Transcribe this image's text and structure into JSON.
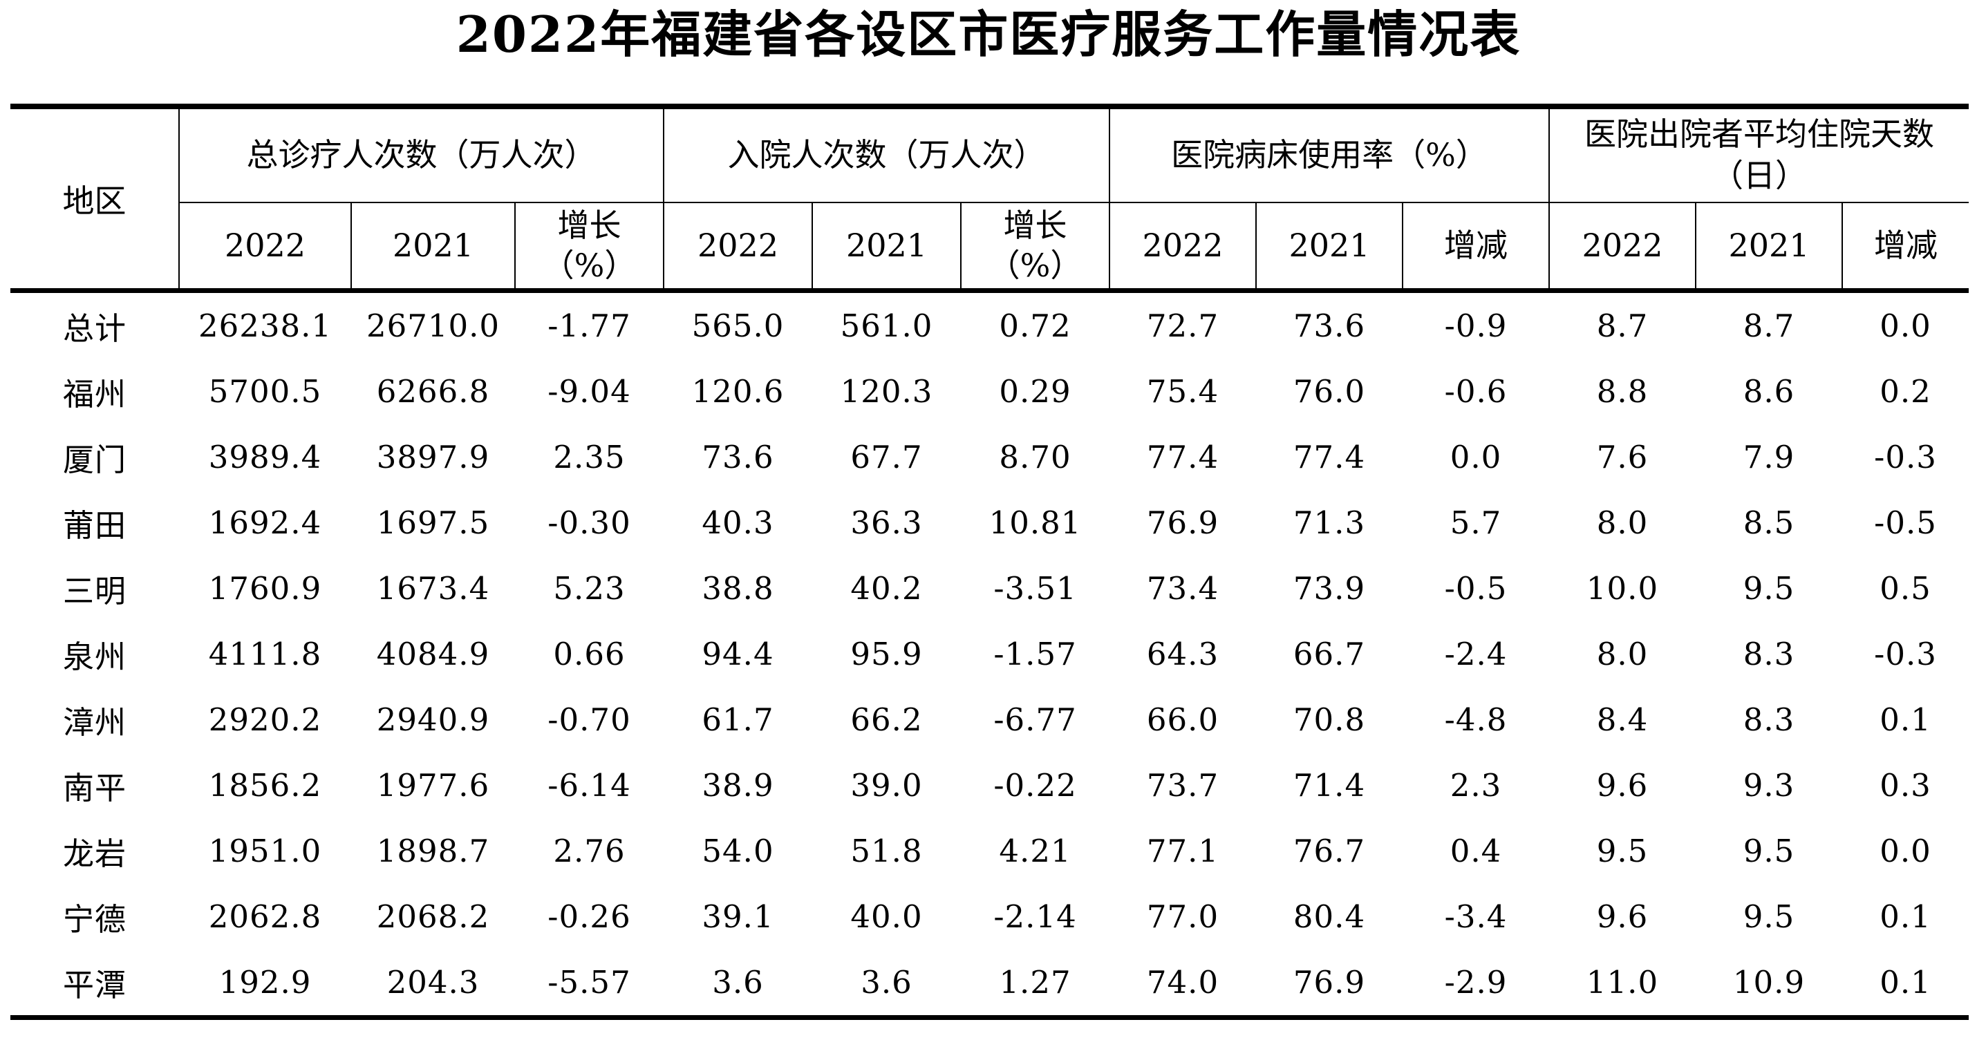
{
  "page": {
    "title": "2022年福建省各设区市医疗服务工作量情况表"
  },
  "colors": {
    "background": "#ffffff",
    "text": "#000000",
    "border": "#000000"
  },
  "table": {
    "region_column_header": "地区",
    "column_groups": [
      {
        "label": "总诊疗人次数（万人次）",
        "subcolumns": [
          "2022",
          "2021",
          "增长\n（%）"
        ]
      },
      {
        "label": "入院人次数（万人次）",
        "subcolumns": [
          "2022",
          "2021",
          "增长\n（%）"
        ]
      },
      {
        "label": "医院病床使用率（%）",
        "subcolumns": [
          "2022",
          "2021",
          "增减"
        ]
      },
      {
        "label": "医院出院者平均住院天数\n（日）",
        "subcolumns": [
          "2022",
          "2021",
          "增减"
        ]
      }
    ],
    "rows": [
      {
        "region": "总计",
        "values": [
          "26238.1",
          "26710.0",
          "-1.77",
          "565.0",
          "561.0",
          "0.72",
          "72.7",
          "73.6",
          "-0.9",
          "8.7",
          "8.7",
          "0.0"
        ]
      },
      {
        "region": "福州",
        "values": [
          "5700.5",
          "6266.8",
          "-9.04",
          "120.6",
          "120.3",
          "0.29",
          "75.4",
          "76.0",
          "-0.6",
          "8.8",
          "8.6",
          "0.2"
        ]
      },
      {
        "region": "厦门",
        "values": [
          "3989.4",
          "3897.9",
          "2.35",
          "73.6",
          "67.7",
          "8.70",
          "77.4",
          "77.4",
          "0.0",
          "7.6",
          "7.9",
          "-0.3"
        ]
      },
      {
        "region": "莆田",
        "values": [
          "1692.4",
          "1697.5",
          "-0.30",
          "40.3",
          "36.3",
          "10.81",
          "76.9",
          "71.3",
          "5.7",
          "8.0",
          "8.5",
          "-0.5"
        ]
      },
      {
        "region": "三明",
        "values": [
          "1760.9",
          "1673.4",
          "5.23",
          "38.8",
          "40.2",
          "-3.51",
          "73.4",
          "73.9",
          "-0.5",
          "10.0",
          "9.5",
          "0.5"
        ]
      },
      {
        "region": "泉州",
        "values": [
          "4111.8",
          "4084.9",
          "0.66",
          "94.4",
          "95.9",
          "-1.57",
          "64.3",
          "66.7",
          "-2.4",
          "8.0",
          "8.3",
          "-0.3"
        ]
      },
      {
        "region": "漳州",
        "values": [
          "2920.2",
          "2940.9",
          "-0.70",
          "61.7",
          "66.2",
          "-6.77",
          "66.0",
          "70.8",
          "-4.8",
          "8.4",
          "8.3",
          "0.1"
        ]
      },
      {
        "region": "南平",
        "values": [
          "1856.2",
          "1977.6",
          "-6.14",
          "38.9",
          "39.0",
          "-0.22",
          "73.7",
          "71.4",
          "2.3",
          "9.6",
          "9.3",
          "0.3"
        ]
      },
      {
        "region": "龙岩",
        "values": [
          "1951.0",
          "1898.7",
          "2.76",
          "54.0",
          "51.8",
          "4.21",
          "77.1",
          "76.7",
          "0.4",
          "9.5",
          "9.5",
          "0.0"
        ]
      },
      {
        "region": "宁德",
        "values": [
          "2062.8",
          "2068.2",
          "-0.26",
          "39.1",
          "40.0",
          "-2.14",
          "77.0",
          "80.4",
          "-3.4",
          "9.6",
          "9.5",
          "0.1"
        ]
      },
      {
        "region": "平潭",
        "values": [
          "192.9",
          "204.3",
          "-5.57",
          "3.6",
          "3.6",
          "1.27",
          "74.0",
          "76.9",
          "-2.9",
          "11.0",
          "10.9",
          "0.1"
        ]
      }
    ]
  }
}
